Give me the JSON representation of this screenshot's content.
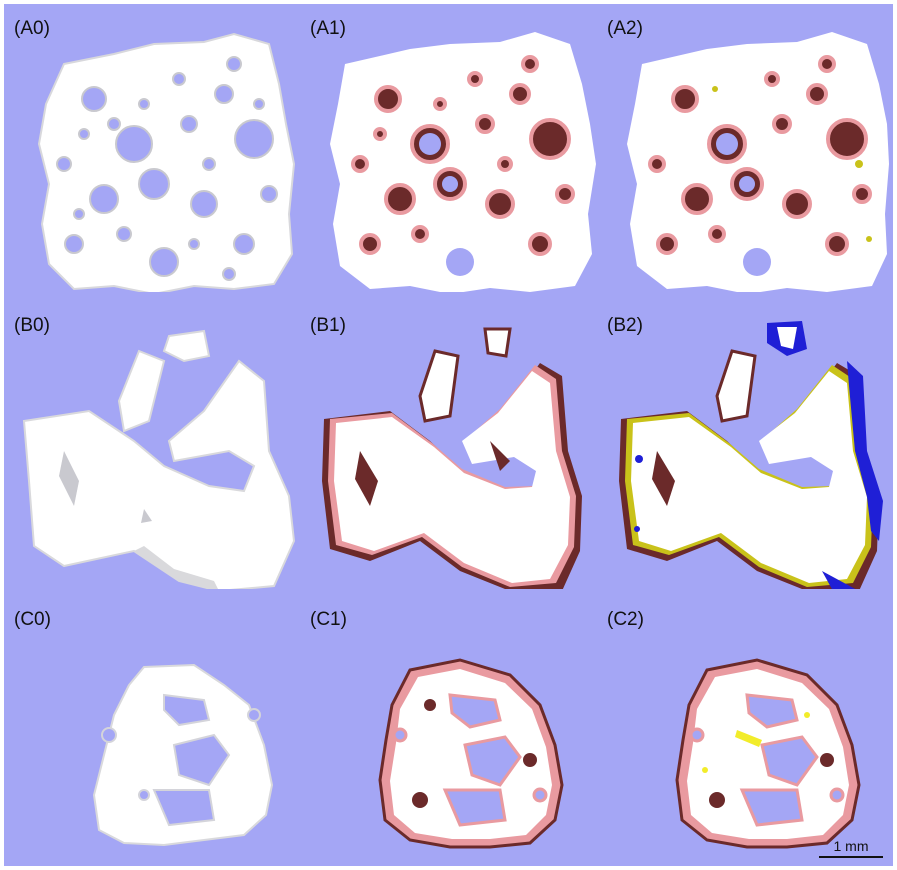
{
  "panels": {
    "a0": "(A0)",
    "a1": "(A1)",
    "a2": "(A2)",
    "b0": "(B0)",
    "b1": "(B1)",
    "b2": "(B2)",
    "c0": "(C0)",
    "c1": "(C1)",
    "c2": "(C2)"
  },
  "scale_bar": "1 mm",
  "colors": {
    "background": "#a4a6f5",
    "scaffold": "#ffffff",
    "surface_shadow": "#d9d9dc",
    "deformation_pink": "#e99aa0",
    "deformation_dark": "#6b2a2a",
    "highlight_blue": "#1f1fd6",
    "highlight_yellow": "#c9c21a"
  }
}
